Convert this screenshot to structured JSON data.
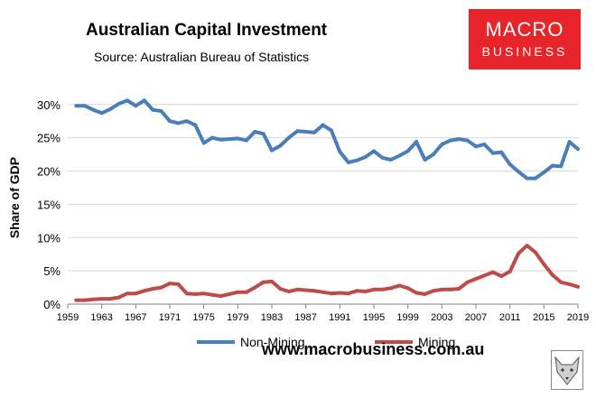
{
  "header": {
    "title": "Australian Capital Investment",
    "subtitle": "Source: Australian Bureau of Statistics"
  },
  "logo": {
    "line1": "MACRO",
    "line2": "BUSINESS",
    "color": "#e8242b"
  },
  "footer": {
    "url": "www.macrobusiness.com.au"
  },
  "chart_data": {
    "type": "line",
    "title": "Australian Capital Investment",
    "ylabel": "Share of GDP",
    "xlabel": "",
    "xlim": [
      1959,
      2019
    ],
    "ylim": [
      0,
      32
    ],
    "x_ticks": [
      "1959",
      "1963",
      "1967",
      "1971",
      "1975",
      "1979",
      "1983",
      "1987",
      "1991",
      "1995",
      "1999",
      "2003",
      "2007",
      "2011",
      "2015",
      "2019"
    ],
    "y_ticks": [
      "0%",
      "5%",
      "10%",
      "15%",
      "20%",
      "25%",
      "30%"
    ],
    "y_tick_values": [
      0,
      5,
      10,
      15,
      20,
      25,
      30
    ],
    "grid": "horizontal",
    "legend_position": "bottom",
    "series": [
      {
        "name": "Non-Mining",
        "color": "#4a7ebb",
        "x": [
          1960,
          1961,
          1962,
          1963,
          1964,
          1965,
          1966,
          1967,
          1968,
          1969,
          1970,
          1971,
          1972,
          1973,
          1974,
          1975,
          1976,
          1977,
          1978,
          1979,
          1980,
          1981,
          1982,
          1983,
          1984,
          1985,
          1986,
          1987,
          1988,
          1989,
          1990,
          1991,
          1992,
          1993,
          1994,
          1995,
          1996,
          1997,
          1998,
          1999,
          2000,
          2001,
          2002,
          2003,
          2004,
          2005,
          2006,
          2007,
          2008,
          2009,
          2010,
          2011,
          2012,
          2013,
          2014,
          2015,
          2016,
          2017,
          2018,
          2019
        ],
        "values": [
          29.8,
          29.8,
          29.2,
          28.7,
          29.3,
          30.1,
          30.6,
          29.8,
          30.6,
          29.2,
          29.0,
          27.5,
          27.2,
          27.5,
          26.9,
          24.2,
          25.0,
          24.7,
          24.8,
          24.9,
          24.6,
          25.9,
          25.6,
          23.1,
          23.8,
          25.0,
          26.0,
          25.9,
          25.8,
          26.9,
          26.1,
          22.9,
          21.3,
          21.6,
          22.1,
          23.0,
          22.0,
          21.7,
          22.3,
          23.0,
          24.4,
          21.7,
          22.5,
          24.0,
          24.6,
          24.8,
          24.6,
          23.7,
          24.0,
          22.7,
          22.8,
          21.0,
          19.9,
          18.9,
          18.9,
          19.8,
          20.8,
          20.7,
          24.4,
          23.3
        ]
      },
      {
        "name": "Mining",
        "color": "#be4b48",
        "x": [
          1960,
          1961,
          1962,
          1963,
          1964,
          1965,
          1966,
          1967,
          1968,
          1969,
          1970,
          1971,
          1972,
          1973,
          1974,
          1975,
          1976,
          1977,
          1978,
          1979,
          1980,
          1981,
          1982,
          1983,
          1984,
          1985,
          1986,
          1987,
          1988,
          1989,
          1990,
          1991,
          1992,
          1993,
          1994,
          1995,
          1996,
          1997,
          1998,
          1999,
          2000,
          2001,
          2002,
          2003,
          2004,
          2005,
          2006,
          2007,
          2008,
          2009,
          2010,
          2011,
          2012,
          2013,
          2014,
          2015,
          2016,
          2017,
          2018,
          2019
        ],
        "values": [
          0.6,
          0.6,
          0.7,
          0.8,
          0.8,
          1.0,
          1.6,
          1.6,
          2.0,
          2.3,
          2.5,
          3.1,
          3.0,
          1.6,
          1.5,
          1.6,
          1.4,
          1.2,
          1.5,
          1.8,
          1.8,
          2.5,
          3.3,
          3.4,
          2.3,
          1.9,
          2.2,
          2.1,
          2.0,
          1.8,
          1.6,
          1.7,
          1.6,
          2.0,
          1.9,
          2.2,
          2.2,
          2.4,
          2.8,
          2.4,
          1.7,
          1.5,
          2.0,
          2.2,
          2.2,
          2.3,
          3.3,
          3.8,
          4.3,
          4.8,
          4.2,
          4.9,
          7.6,
          8.8,
          7.8,
          6.0,
          4.4,
          3.3,
          3.0,
          2.6
        ]
      }
    ]
  }
}
